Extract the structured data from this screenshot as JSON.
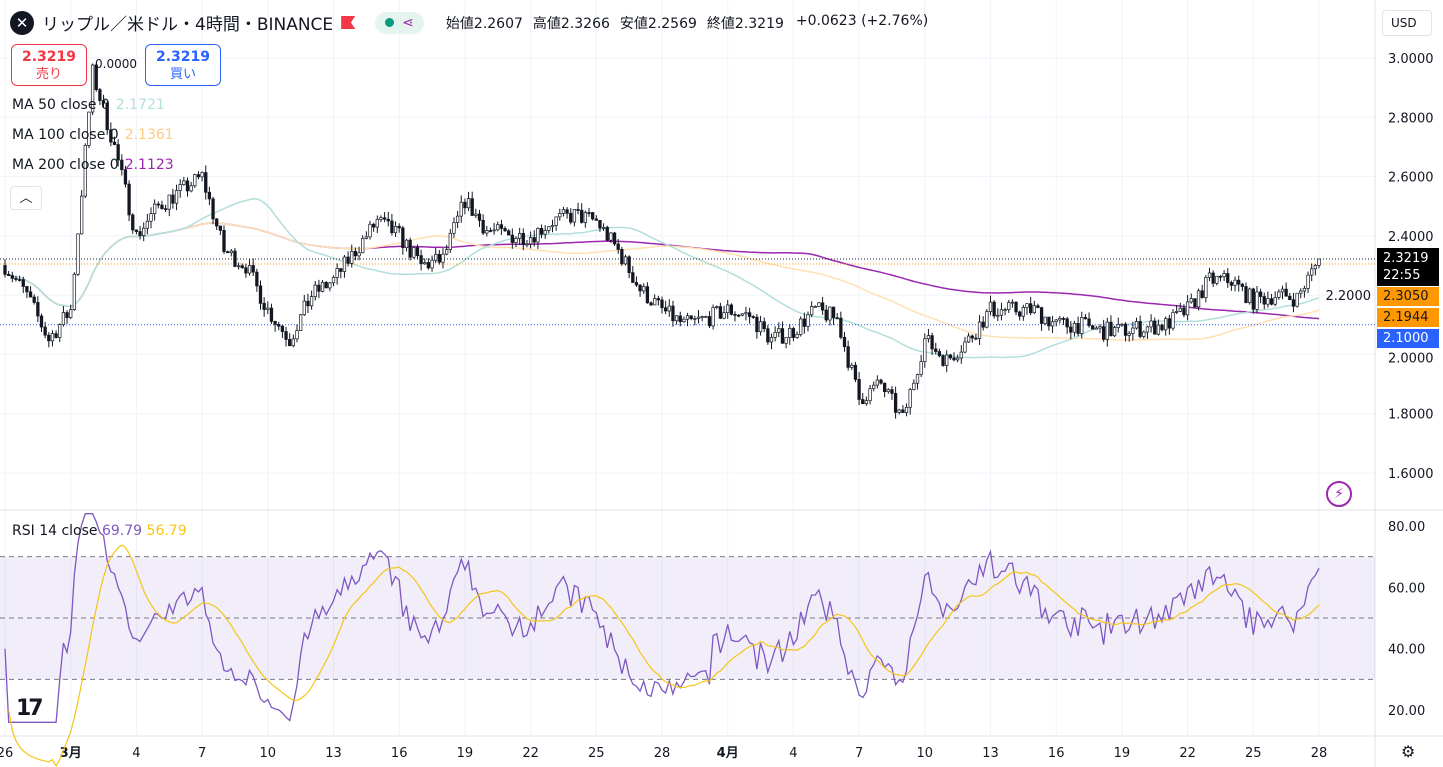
{
  "header": {
    "symbol_icon": "xrp-logo",
    "title": "リップル／米ドル・4時間・BINANCE",
    "open_label": "始値",
    "open": "2.2607",
    "high_label": "高値",
    "high": "2.3266",
    "low_label": "安値",
    "low": "2.2569",
    "close_label": "終値",
    "close": "2.3219",
    "change": "+0.0623 (+2.76%)"
  },
  "trade": {
    "sell_price": "2.3219",
    "sell_label": "売り",
    "buy_price": "2.3219",
    "buy_label": "買い",
    "spread": "0.0000"
  },
  "indicators": [
    {
      "label": "MA 50 close 0",
      "value": "2.1721",
      "color": "#b2dfdb"
    },
    {
      "label": "MA 100 close 0",
      "value": "2.1361",
      "color": "#ffe0b2"
    },
    {
      "label": "MA 200 close 0",
      "value": "2.1123",
      "color": "#9c27b0"
    }
  ],
  "rsi": {
    "label": "RSI 14 close",
    "value": "69.79",
    "ma_value": "56.79"
  },
  "currency": "USD",
  "price_tags": [
    {
      "value": "2.3219",
      "sub": "22:55",
      "color": "#000000"
    },
    {
      "value": "2.3050",
      "color": "#ff9800"
    },
    {
      "value": "2.1944",
      "color": "#ff9800"
    },
    {
      "value": "2.1000",
      "color": "#2962ff"
    }
  ],
  "chart_data": {
    "type": "candlestick",
    "title": "XRP/USD 4h BINANCE",
    "price_ticks": [
      "3.0000",
      "2.8000",
      "2.6000",
      "2.4000",
      "2.2000",
      "2.0000",
      "1.8000",
      "1.6000"
    ],
    "rsi_ticks": [
      "80.00",
      "60.00",
      "40.00",
      "20.00"
    ],
    "x_ticks": [
      "26",
      "3月",
      "4",
      "7",
      "10",
      "13",
      "16",
      "19",
      "22",
      "25",
      "28",
      "4月",
      "4",
      "7",
      "10",
      "13",
      "16",
      "19",
      "22",
      "25",
      "28"
    ],
    "ylim": [
      1.55,
      3.05
    ],
    "rsi_ylim": [
      15,
      85
    ],
    "rsi_bands": [
      30,
      50,
      70
    ],
    "daily_close_approx": [
      2.3,
      2.2,
      2.05,
      2.15,
      2.95,
      2.7,
      2.4,
      2.5,
      2.55,
      2.6,
      2.35,
      2.3,
      2.15,
      2.05,
      2.2,
      2.25,
      2.35,
      2.45,
      2.4,
      2.3,
      2.32,
      2.52,
      2.42,
      2.4,
      2.4,
      2.45,
      2.47,
      2.45,
      2.35,
      2.22,
      2.15,
      2.1,
      2.12,
      2.15,
      2.13,
      2.05,
      2.08,
      2.15,
      2.12,
      1.85,
      1.9,
      1.78,
      2.05,
      1.98,
      2.05,
      2.15,
      2.15,
      2.15,
      2.1,
      2.1,
      2.08,
      2.08,
      2.09,
      2.1,
      2.15,
      2.25,
      2.25,
      2.18,
      2.2,
      2.19,
      2.32
    ]
  }
}
